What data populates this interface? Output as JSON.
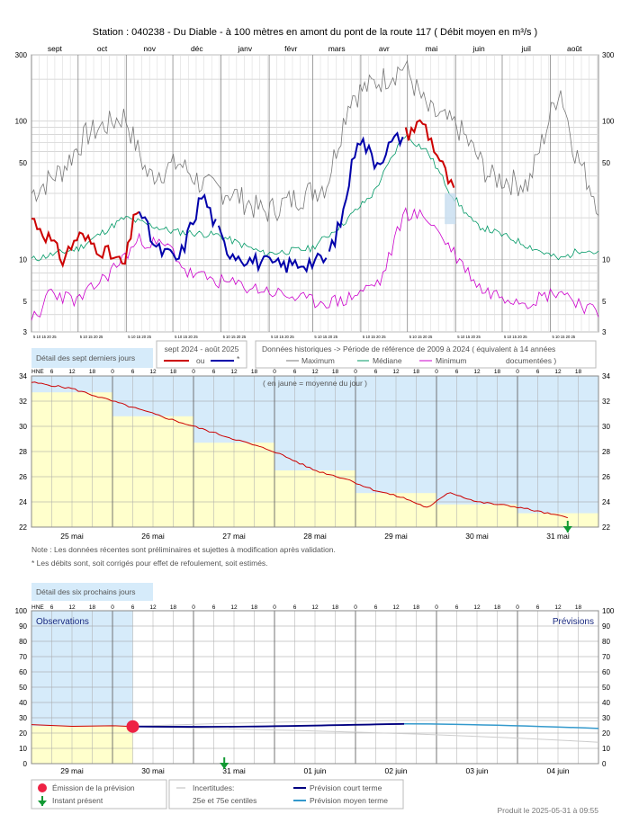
{
  "title": "Station : 040238     -   Du Diable - à 100 mètres en amont du pont de la route 117   ( Débit moyen en m³/s )",
  "colors": {
    "red": "#cc0000",
    "blue": "#0000aa",
    "max": "#777777",
    "median": "#009966",
    "min": "#cc00cc",
    "yellow": "#ffffcc",
    "lightblue": "#d6ebfa",
    "fcst_short": "#000080",
    "fcst_mid": "#3399cc"
  },
  "annual": {
    "months": [
      "sept",
      "oct",
      "nov",
      "déc",
      "janv",
      "févr",
      "mars",
      "avr",
      "mai",
      "juin",
      "juil",
      "août"
    ],
    "yticks": [
      "300",
      "100",
      "50",
      "10",
      "5",
      "3"
    ],
    "day_ticks": "5 10 15 20 25"
  },
  "legend": {
    "detail7_title": "Détail des sept derniers jours",
    "period_label": "sept 2024 - août 2025",
    "or_label": "ou",
    "star": "*",
    "historical_label": "Données historiques -> Période de référence  de 2009 à 2024   ( équivalent à 14 années",
    "documented": "documentées )",
    "maximum": "Maximum",
    "median": "Médiane",
    "minimum": "Minimum"
  },
  "week": {
    "hne": "HNE",
    "hours": [
      "6",
      "12",
      "18",
      "0",
      "6",
      "12",
      "18",
      "0",
      "6",
      "12",
      "18",
      "0",
      "6",
      "12",
      "18",
      "0",
      "6",
      "12",
      "18",
      "0",
      "6",
      "12",
      "18",
      "0",
      "6",
      "12",
      "18"
    ],
    "yticks": [
      "34",
      "32",
      "30",
      "28",
      "26",
      "24",
      "22"
    ],
    "days": [
      "25 mai",
      "26 mai",
      "27 mai",
      "28 mai",
      "29 mai",
      "30 mai",
      "31 mai"
    ],
    "note_yellow": "( en jaune = moyenne du jour )",
    "daily_means": [
      32.7,
      30.8,
      28.7,
      26.5,
      24.7,
      23.8,
      23.1
    ]
  },
  "notes": {
    "line1": "Note : Les données récentes sont préliminaires et sujettes à modification après validation.",
    "line2": "* Les débits sont, soit corrigés pour effet de refoulement, soit estimés."
  },
  "forecast": {
    "detail6_title": "Détail des six prochains jours",
    "hne": "HNE",
    "hours": [
      "6",
      "12",
      "18",
      "0",
      "6",
      "12",
      "18",
      "0",
      "6",
      "12",
      "18",
      "0",
      "6",
      "12",
      "18",
      "0",
      "6",
      "12",
      "18",
      "0",
      "6",
      "12",
      "18",
      "0",
      "6",
      "12",
      "18"
    ],
    "yticks": [
      "100",
      "90",
      "80",
      "70",
      "60",
      "50",
      "40",
      "30",
      "20",
      "10",
      "0"
    ],
    "days": [
      "29 mai",
      "30 mai",
      "31 mai",
      "01 juin",
      "02 juin",
      "03 juin",
      "04 juin"
    ],
    "observations_label": "Observations",
    "previsions_label": "Prévisions",
    "emission_label": "Émission de la prévision",
    "present_label": "Instant présent",
    "uncert_label": "Incertitudes:",
    "centiles_label": "25e et 75e centiles",
    "short_label": "Prévision court terme",
    "mid_label": "Prévision moyen terme"
  },
  "footer": "Produit le 2025-05-31 à 09:55"
}
